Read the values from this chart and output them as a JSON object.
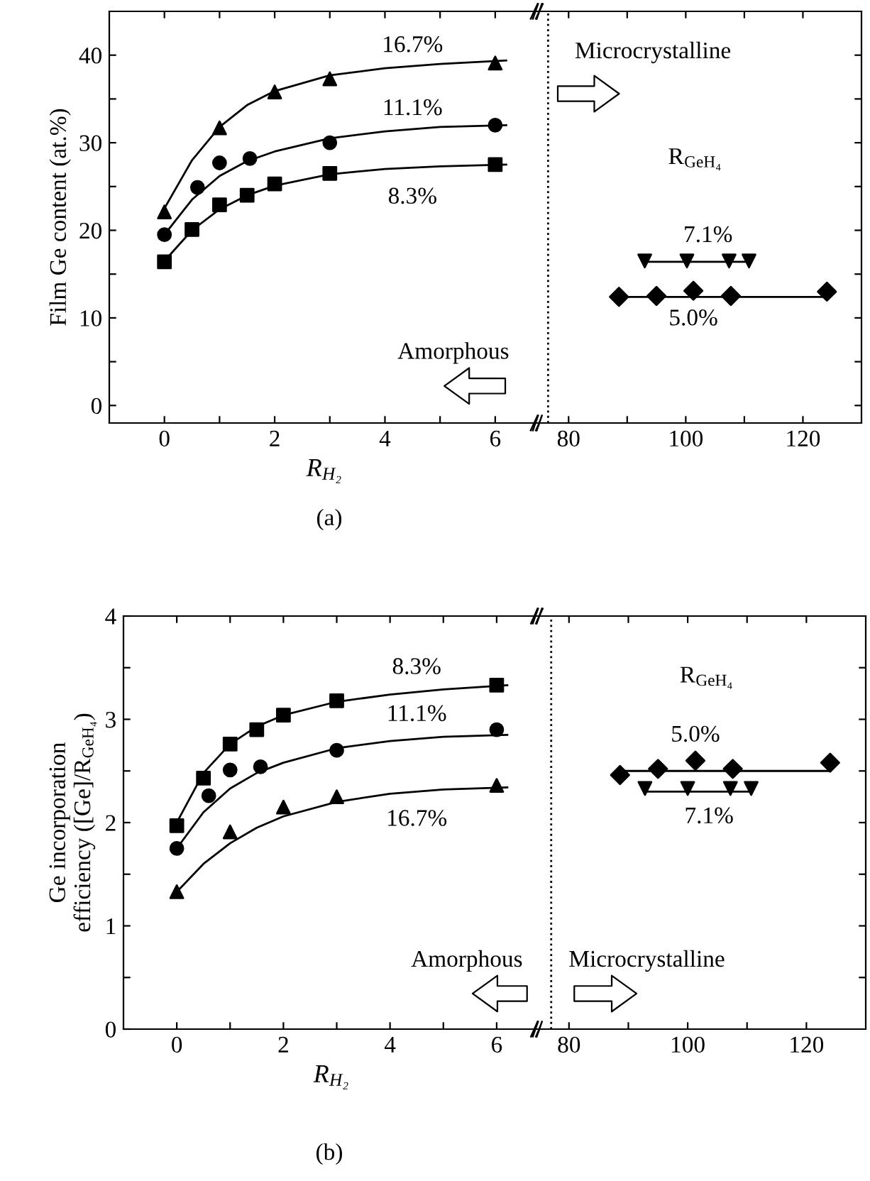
{
  "chart_data": [
    {
      "type": "scatter",
      "ylabel": "Film Ge content (at.%)",
      "xlabel": "R$_{H₂}$",
      "xlim": [
        -1,
        6.8
      ],
      "ylim": [
        -2,
        45
      ],
      "xticks": [
        0,
        {
          "value": 1,
          "label": null
        },
        2,
        {
          "value": 3,
          "label": null
        },
        4,
        {
          "value": 5,
          "label": null
        },
        6
      ],
      "yticks": [
        0,
        {
          "value": 5,
          "label": null
        },
        10,
        {
          "value": 15,
          "label": null
        },
        20,
        {
          "value": 25,
          "label": null
        },
        30,
        {
          "value": 35,
          "label": null
        },
        40
      ],
      "series": [
        {
          "name": "16.7%",
          "color": "#000000",
          "marker": "triangle",
          "x": [
            0,
            1,
            2,
            3,
            6
          ],
          "values": [
            22.1,
            31.7,
            35.8,
            37.3,
            39.1
          ]
        },
        {
          "name": "11.1%",
          "color": "#000000",
          "marker": "circle",
          "x": [
            0,
            0.6,
            1,
            1.55,
            3,
            6
          ],
          "values": [
            19.5,
            24.9,
            27.7,
            28.2,
            30.0,
            32.0
          ]
        },
        {
          "name": "8.3%",
          "color": "#000000",
          "marker": "square",
          "x": [
            0,
            0.5,
            1,
            1.5,
            2,
            3,
            6
          ],
          "values": [
            16.4,
            20.1,
            22.9,
            24.0,
            25.3,
            26.5,
            27.5
          ]
        },
        {
          "type": "line",
          "color": "#000000",
          "x": [
            0,
            0.5,
            1,
            1.5,
            2,
            3,
            4,
            5,
            6.2
          ],
          "values": [
            22.5,
            28,
            31.8,
            34.3,
            35.9,
            37.7,
            38.5,
            39.0,
            39.4
          ]
        },
        {
          "type": "line",
          "color": "#000000",
          "x": [
            0,
            0.5,
            1,
            1.5,
            2,
            3,
            4,
            5,
            6.2
          ],
          "values": [
            19.5,
            23.5,
            26.2,
            27.9,
            29.0,
            30.5,
            31.3,
            31.8,
            32.0
          ]
        },
        {
          "type": "line",
          "color": "#000000",
          "x": [
            0,
            0.5,
            1,
            1.5,
            2,
            3,
            4,
            5,
            6.2
          ],
          "values": [
            16.5,
            20.0,
            22.4,
            24.0,
            25.1,
            26.4,
            27.0,
            27.3,
            27.5
          ]
        }
      ],
      "annotations": [
        "Amorphous",
        "(a)"
      ]
    },
    {
      "type": "scatter",
      "tick_labels": "x",
      "xlim": [
        75,
        130
      ],
      "ylim": [
        -2,
        45
      ],
      "xticks": [
        80,
        {
          "value": 90,
          "label": null
        },
        100,
        {
          "value": 110,
          "label": null
        },
        120
      ],
      "yticks": [
        {
          "value": 0,
          "label": null
        },
        {
          "value": 5,
          "label": null
        },
        {
          "value": 10,
          "label": null
        },
        {
          "value": 15,
          "label": null
        },
        {
          "value": 20,
          "label": null
        },
        {
          "value": 25,
          "label": null
        },
        {
          "value": 30,
          "label": null
        },
        {
          "value": 35,
          "label": null
        },
        {
          "value": 40,
          "label": null
        }
      ],
      "series": [
        {
          "name": "7.1%",
          "color": "#000000",
          "marker": "triangle_down",
          "x": [
            93.0,
            100.2,
            107.4,
            110.8
          ],
          "values": [
            16.5,
            16.5,
            16.5,
            16.5
          ]
        },
        {
          "name": "5.0%",
          "color": "#000000",
          "marker": "diamond",
          "x": [
            88.6,
            95.0,
            101.3,
            107.7,
            124.1
          ],
          "values": [
            12.4,
            12.5,
            13.1,
            12.5,
            13.0
          ]
        },
        {
          "type": "line",
          "color": "#000000",
          "x": [
            93.0,
            110.8
          ],
          "values": [
            16.4,
            16.4
          ]
        },
        {
          "type": "line",
          "color": "#000000",
          "x": [
            88.6,
            124.1
          ],
          "values": [
            12.4,
            12.4
          ]
        }
      ],
      "ref_lines": [
        {
          "axis": "x",
          "value": 76.5,
          "line_style": "dotted",
          "color": "#000000"
        }
      ],
      "annotations": [
        "Microcrystalline",
        "R$_{GeH₄}$"
      ]
    },
    {
      "type": "scatter",
      "ylabel": "Ge incorporation\nefficiency ([Ge]/R$_{GeH₄}$)",
      "xlabel": "R$_{H₂}$",
      "xlim": [
        -1,
        6.8
      ],
      "ylim": [
        0,
        4
      ],
      "xticks": [
        0,
        {
          "value": 1,
          "label": null
        },
        2,
        {
          "value": 3,
          "label": null
        },
        4,
        {
          "value": 5,
          "label": null
        },
        6
      ],
      "yticks": [
        0,
        {
          "value": 0.5,
          "label": null
        },
        1,
        {
          "value": 1.5,
          "label": null
        },
        2,
        {
          "value": 2.5,
          "label": null
        },
        3,
        {
          "value": 3.5,
          "label": null
        },
        4
      ],
      "series": [
        {
          "name": "8.3%",
          "color": "#000000",
          "marker": "square",
          "x": [
            0,
            0.5,
            1,
            1.5,
            2,
            3,
            6
          ],
          "values": [
            1.97,
            2.43,
            2.76,
            2.9,
            3.04,
            3.18,
            3.33
          ]
        },
        {
          "name": "11.1%",
          "color": "#000000",
          "marker": "circle",
          "x": [
            0,
            0.6,
            1,
            1.57,
            3,
            6
          ],
          "values": [
            1.75,
            2.26,
            2.51,
            2.54,
            2.7,
            2.9
          ]
        },
        {
          "name": "16.7%",
          "color": "#000000",
          "marker": "triangle",
          "x": [
            0,
            1,
            2,
            3,
            6
          ],
          "values": [
            1.33,
            1.91,
            2.15,
            2.25,
            2.36
          ]
        },
        {
          "type": "line",
          "color": "#000000",
          "x": [
            0,
            0.5,
            1,
            1.5,
            2,
            3,
            4,
            5,
            6.2
          ],
          "values": [
            2.0,
            2.48,
            2.76,
            2.93,
            3.04,
            3.17,
            3.24,
            3.29,
            3.33
          ]
        },
        {
          "type": "line",
          "color": "#000000",
          "x": [
            0,
            0.5,
            1,
            1.5,
            2,
            3,
            4,
            5,
            6.2
          ],
          "values": [
            1.75,
            2.1,
            2.33,
            2.48,
            2.58,
            2.72,
            2.79,
            2.83,
            2.85
          ]
        },
        {
          "type": "line",
          "color": "#000000",
          "x": [
            0,
            0.5,
            1,
            1.5,
            2,
            3,
            4,
            5,
            6.2
          ],
          "values": [
            1.33,
            1.6,
            1.8,
            1.95,
            2.06,
            2.2,
            2.28,
            2.32,
            2.34
          ]
        }
      ],
      "annotations": [
        "Amorphous",
        "(b)"
      ]
    },
    {
      "type": "scatter",
      "tick_labels": "x",
      "xlim": [
        75,
        130
      ],
      "ylim": [
        0,
        4
      ],
      "xticks": [
        80,
        {
          "value": 90,
          "label": null
        },
        100,
        {
          "value": 110,
          "label": null
        },
        120
      ],
      "yticks": [
        {
          "value": 0.5,
          "label": null
        },
        {
          "value": 1,
          "label": null
        },
        {
          "value": 1.5,
          "label": null
        },
        {
          "value": 2,
          "label": null
        },
        {
          "value": 2.5,
          "label": null
        },
        {
          "value": 3,
          "label": null
        },
        {
          "value": 3.5,
          "label": null
        }
      ],
      "series": [
        {
          "name": "5.0%",
          "color": "#000000",
          "marker": "diamond",
          "x": [
            88.6,
            95.0,
            101.3,
            107.6,
            124.0
          ],
          "values": [
            2.46,
            2.52,
            2.6,
            2.52,
            2.58
          ]
        },
        {
          "name": "7.1%",
          "color": "#000000",
          "marker": "triangle_down",
          "x": [
            92.8,
            100.0,
            107.2,
            110.7
          ],
          "values": [
            2.33,
            2.33,
            2.33,
            2.33
          ]
        },
        {
          "type": "line",
          "color": "#000000",
          "x": [
            88.6,
            124.0
          ],
          "values": [
            2.5,
            2.5
          ]
        },
        {
          "type": "line",
          "color": "#000000",
          "x": [
            92.8,
            110.7
          ],
          "values": [
            2.3,
            2.3
          ]
        }
      ],
      "ref_lines": [
        {
          "axis": "x",
          "value": 77,
          "line_style": "dotted",
          "color": "#000000"
        }
      ],
      "annotations": [
        "R$_{GeH₄}$",
        "Microcrystalline"
      ]
    }
  ]
}
